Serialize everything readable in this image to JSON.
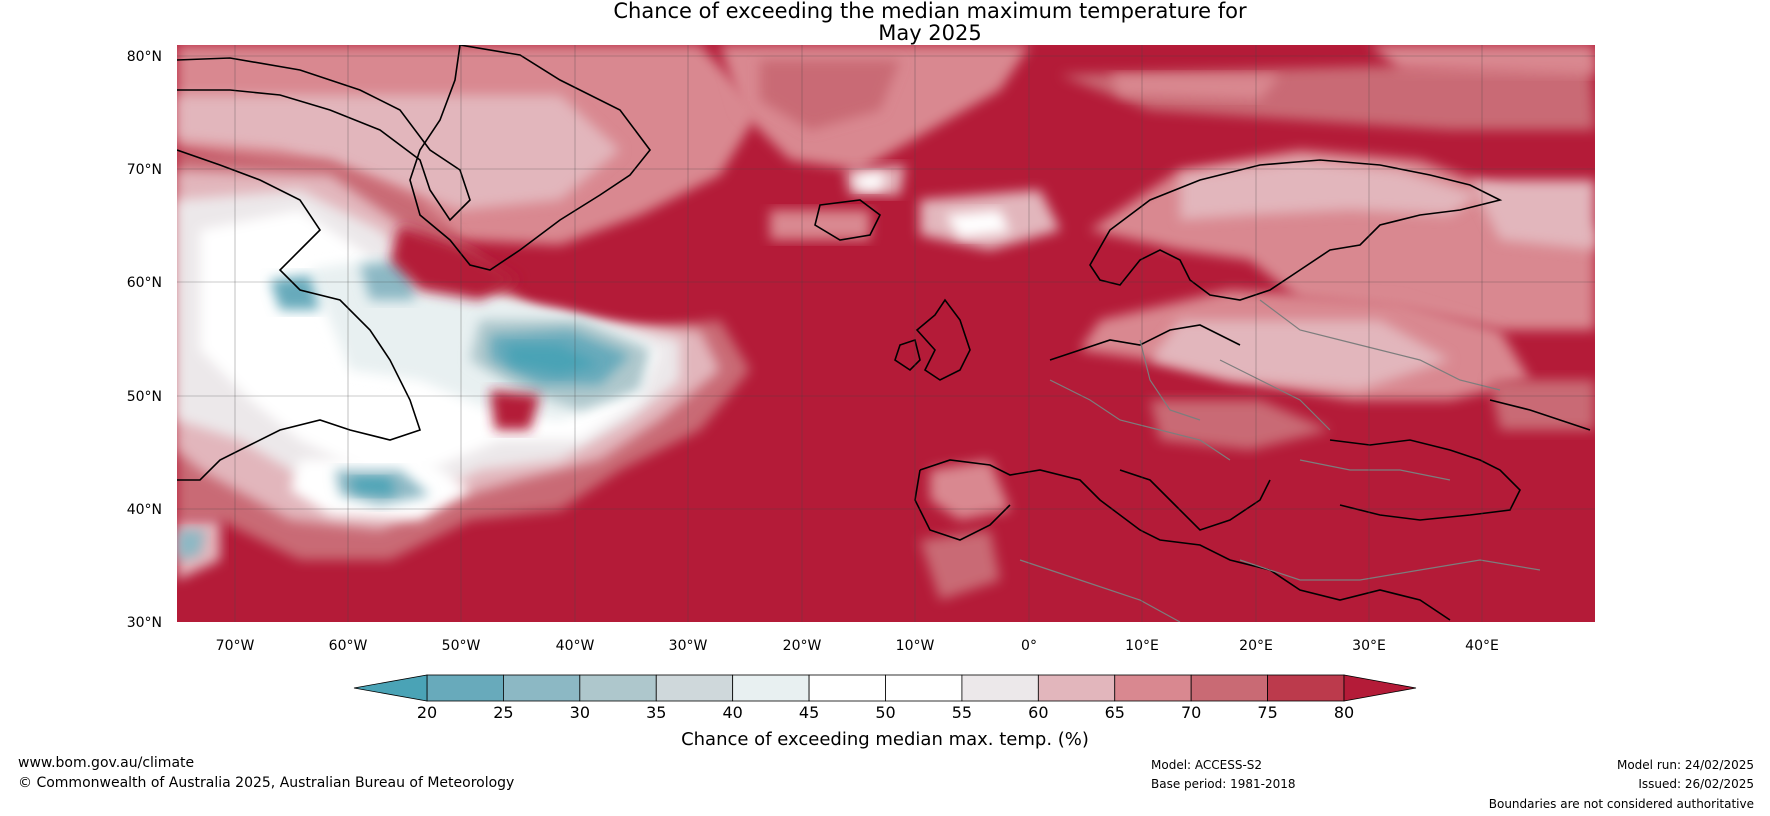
{
  "title": {
    "line1": "Chance of exceeding the median maximum temperature for",
    "line2": "May 2025"
  },
  "map": {
    "lat_labels": [
      "80°N",
      "70°N",
      "60°N",
      "50°N",
      "40°N",
      "30°N"
    ],
    "lon_labels": [
      "70°W",
      "60°W",
      "50°W",
      "40°W",
      "30°W",
      "20°W",
      "10°W",
      "0°",
      "10°E",
      "20°E",
      "30°E",
      "40°E"
    ]
  },
  "colorbar": {
    "ticks": [
      "20",
      "25",
      "30",
      "35",
      "40",
      "45",
      "50",
      "55",
      "60",
      "65",
      "70",
      "75",
      "80"
    ],
    "label": "Chance of exceeding median max. temp. (%)",
    "colors": {
      "under": "#4aa3b6",
      "bins": [
        "#68aabb",
        "#8cb8c4",
        "#aec7cc",
        "#cfd8db",
        "#e8f0f1",
        "#ffffff",
        "#ffffff",
        "#ece8ea",
        "#e2b6bc",
        "#d98890",
        "#c96a74",
        "#bc3a4c"
      ],
      "over": "#b41b38"
    }
  },
  "footer": {
    "website": "www.bom.gov.au/climate",
    "copyright": "© Commonwealth of Australia 2025, Australian Bureau of Meteorology",
    "model": "Model: ACCESS-S2",
    "base_period": "Base period: 1981-2018",
    "model_run": "Model run: 24/02/2025",
    "issued": "Issued: 26/02/2025",
    "disclaimer": "Boundaries are not considered authoritative"
  }
}
